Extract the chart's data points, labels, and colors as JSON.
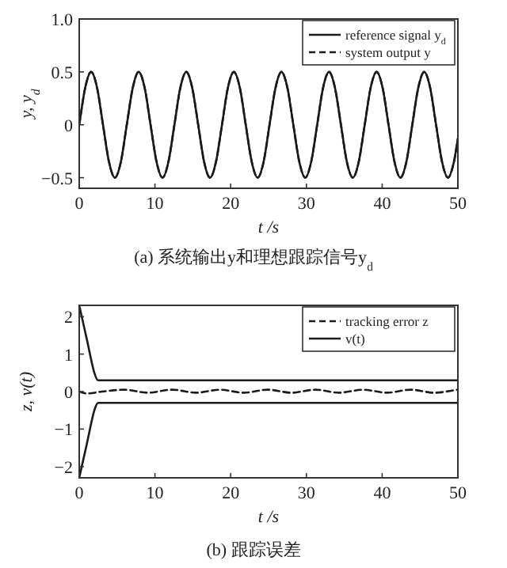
{
  "chart_data": [
    {
      "type": "line",
      "title": "(a) 系统输出y和理想跟踪信号y$_{d}$",
      "xlabel": "t /s",
      "ylabel": "y, y$_{d}$",
      "x": [
        0,
        0.79,
        1.57,
        2.36,
        3.14,
        3.93,
        4.71,
        5.5,
        6.28,
        7.07,
        7.85,
        8.64,
        9.42,
        10.21,
        11.0,
        11.78,
        12.57,
        13.35,
        14.14,
        14.92,
        15.71,
        16.49,
        17.28,
        18.06,
        18.85,
        19.63,
        20.42,
        21.21,
        21.99,
        22.78,
        23.56,
        24.35,
        25.13,
        25.92,
        26.7,
        27.49,
        28.27,
        29.06,
        29.85,
        30.63,
        31.42,
        32.2,
        32.99,
        33.77,
        34.56,
        35.34,
        36.13,
        36.91,
        37.7,
        38.48,
        39.27,
        40.06,
        40.84,
        41.63,
        42.41,
        43.2,
        43.98,
        44.77,
        45.55,
        46.34,
        47.12,
        47.91,
        48.69,
        49.48,
        50
      ],
      "series": [
        {
          "name": "reference signal y$_{d}$",
          "color": "#1a1a1a",
          "line_style": "solid",
          "values": [
            0,
            0.35,
            0.5,
            0.35,
            0,
            -0.35,
            -0.5,
            -0.35,
            0,
            0.35,
            0.5,
            0.35,
            0,
            -0.35,
            -0.5,
            -0.35,
            0,
            0.35,
            0.5,
            0.35,
            0,
            -0.35,
            -0.5,
            -0.35,
            0,
            0.35,
            0.5,
            0.35,
            0,
            -0.35,
            -0.5,
            -0.35,
            0,
            0.35,
            0.5,
            0.35,
            0,
            -0.35,
            -0.5,
            -0.35,
            0,
            0.35,
            0.5,
            0.35,
            0,
            -0.35,
            -0.5,
            -0.35,
            0,
            0.35,
            0.5,
            0.35,
            0,
            -0.35,
            -0.5,
            -0.35,
            0,
            0.35,
            0.5,
            0.35,
            0,
            -0.35,
            -0.5,
            -0.35,
            -0.13
          ]
        },
        {
          "name": "system output y",
          "color": "#1a1a1a",
          "line_style": "dashed",
          "values": [
            0,
            0.35,
            0.5,
            0.35,
            0,
            -0.35,
            -0.5,
            -0.35,
            0,
            0.35,
            0.5,
            0.35,
            0,
            -0.35,
            -0.5,
            -0.35,
            0,
            0.35,
            0.5,
            0.35,
            0,
            -0.35,
            -0.5,
            -0.35,
            0,
            0.35,
            0.5,
            0.35,
            0,
            -0.35,
            -0.5,
            -0.35,
            0,
            0.35,
            0.5,
            0.35,
            0,
            -0.35,
            -0.5,
            -0.35,
            0,
            0.35,
            0.5,
            0.35,
            0,
            -0.35,
            -0.5,
            -0.35,
            0,
            0.35,
            0.5,
            0.35,
            0,
            -0.35,
            -0.5,
            -0.35,
            0,
            0.35,
            0.5,
            0.35,
            0,
            -0.35,
            -0.5,
            -0.35,
            -0.13
          ]
        }
      ],
      "xlim": [
        0,
        50
      ],
      "xticks": [
        0,
        10,
        20,
        30,
        40,
        50
      ],
      "ylim": [
        -0.6,
        1.0
      ],
      "yticks": [
        {
          "value": -0.5,
          "label": "−0.5"
        },
        {
          "value": 0,
          "label": "0"
        },
        {
          "value": 0.5,
          "label": "0.5"
        },
        {
          "value": 1.0,
          "label": "1.0"
        }
      ],
      "grid": false,
      "legend": "top right"
    },
    {
      "type": "line",
      "title": "(b) 跟踪误差",
      "xlabel": "t /s",
      "ylabel": "z, v(t)",
      "series": [
        {
          "name": "tracking error z",
          "color": "#1a1a1a",
          "line_style": "dashed",
          "x": [
            0,
            1,
            3,
            6,
            9,
            12.3,
            15.4,
            18.6,
            21.7,
            24.9,
            28,
            31.2,
            34.3,
            37.5,
            40.6,
            43.8,
            46.9,
            50
          ],
          "values": [
            0,
            -0.05,
            0,
            0.05,
            -0.03,
            0.05,
            -0.03,
            0.05,
            -0.03,
            0.05,
            -0.03,
            0.05,
            -0.03,
            0.05,
            -0.03,
            0.05,
            -0.03,
            0.05
          ]
        },
        {
          "name": "v(t)",
          "color": "#1a1a1a",
          "line_style": "solid",
          "x": [
            0,
            1,
            2,
            2.5,
            50
          ],
          "values": [
            2.3,
            1.4,
            0.5,
            0.3,
            0.3
          ]
        },
        {
          "color": "#1a1a1a",
          "line_style": "solid",
          "x": [
            0,
            1,
            2,
            2.5,
            50
          ],
          "values": [
            -2.3,
            -1.4,
            -0.5,
            -0.3,
            -0.3
          ]
        }
      ],
      "xlim": [
        0,
        50
      ],
      "xticks": [
        0,
        10,
        20,
        30,
        40,
        50
      ],
      "ylim": [
        -2.3,
        2.3
      ],
      "yticks": [
        {
          "value": -2,
          "label": "−2"
        },
        {
          "value": -1,
          "label": "−1"
        },
        {
          "value": 0,
          "label": "0"
        },
        {
          "value": 1,
          "label": "1"
        },
        {
          "value": 2,
          "label": "2"
        }
      ],
      "grid": false,
      "legend": "top right"
    }
  ]
}
